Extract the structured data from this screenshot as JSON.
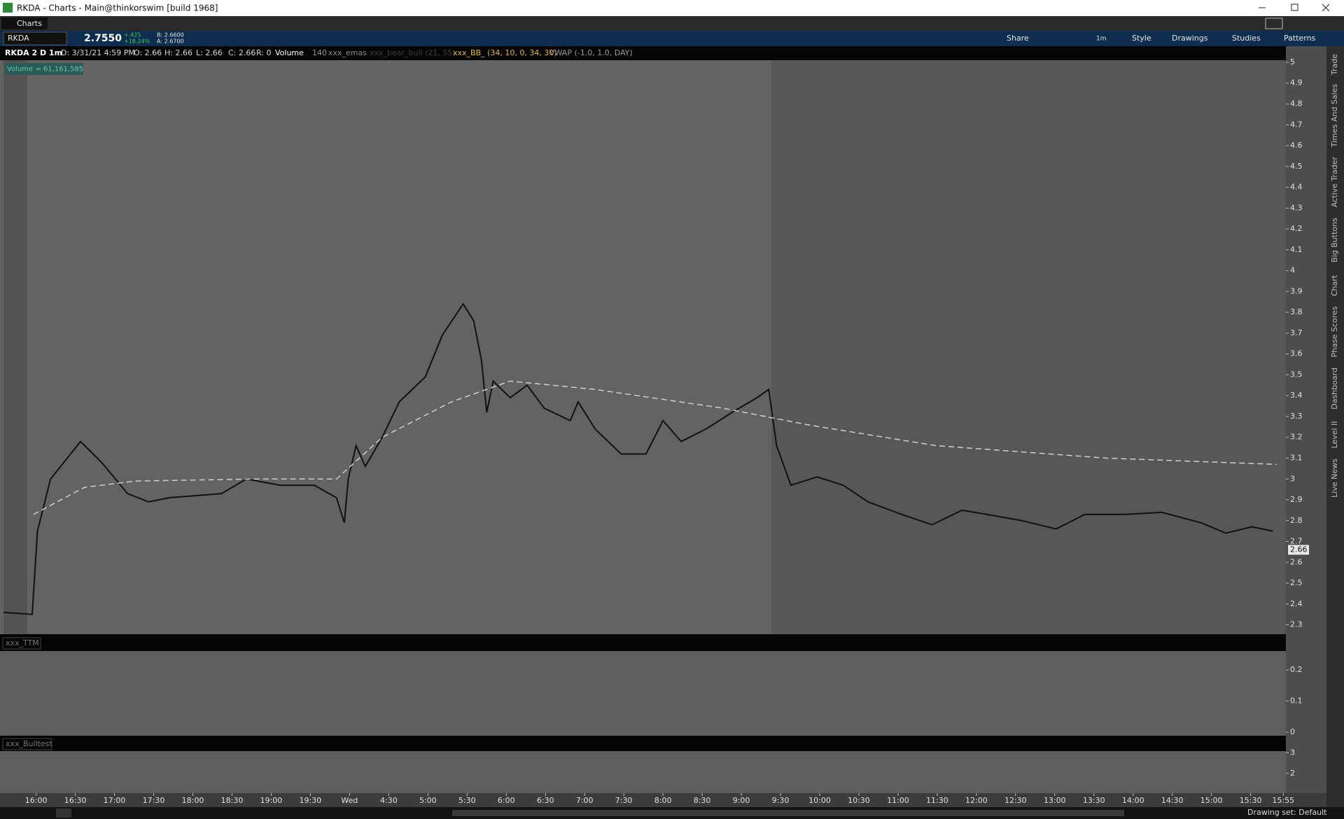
{
  "window": {
    "title": "RKDA - Charts -  Main@thinkorswim [build 1968]",
    "tab": "Charts"
  },
  "toolbar": {
    "symbol": "RKDA",
    "last": "2.7550",
    "change": "+.425",
    "change_pct": "+18.24%",
    "bid": "B: 2.6600",
    "ask": "A: 2.6700",
    "buttons": [
      "Share",
      "1m",
      "Style",
      "Drawings",
      "Studies",
      "Patterns"
    ]
  },
  "info_bar": [
    "D: 3/31/21 4:59 PM",
    "O: 2.66",
    "H: 2.66",
    "L: 2.66",
    "C: 2.66",
    "R: 0",
    "Volume",
    "140",
    "xxx_emas",
    "xxx_bear_bull (21, 55)",
    "xxx_BB_ (34, 10, 0, 34, 30)"
  ],
  "volume_label": "Volume = 61,161,585",
  "side_tabs": [
    "Trade",
    "Times And Sales",
    "Active Trader",
    "Big Buttons",
    "Chart",
    "Phase Scores",
    "Dashboard",
    "Level II",
    "Live News"
  ],
  "status": "Drawing set: Default",
  "chart_data": {
    "type": "line",
    "series": [
      {
        "name": "RKDA 2 D 1m",
        "color": "#111111",
        "dashed": false,
        "x": [
          -25,
          -3,
          1,
          11,
          34,
          50,
          70,
          86,
          102,
          122,
          142,
          161,
          187,
          213,
          230,
          236,
          239,
          245,
          252,
          265,
          278,
          298,
          311,
          327,
          335,
          341,
          345,
          350,
          363,
          376,
          389,
          409,
          415,
          428,
          448,
          467,
          480,
          494,
          513,
          533,
          552,
          561,
          567,
          578,
          598,
          618,
          637,
          663,
          686,
          709,
          728,
          755,
          781,
          803,
          833,
          862,
          892,
          911,
          931,
          947
        ],
        "values": [
          2.36,
          2.35,
          2.75,
          3.0,
          3.18,
          3.08,
          2.93,
          2.89,
          2.91,
          2.92,
          2.93,
          3.0,
          2.97,
          2.97,
          2.91,
          2.79,
          3.0,
          3.16,
          3.06,
          3.2,
          3.37,
          3.49,
          3.69,
          3.84,
          3.76,
          3.57,
          3.32,
          3.47,
          3.39,
          3.45,
          3.34,
          3.28,
          3.37,
          3.24,
          3.12,
          3.12,
          3.28,
          3.18,
          3.24,
          3.32,
          3.39,
          3.43,
          3.16,
          2.97,
          3.01,
          2.97,
          2.89,
          2.83,
          2.78,
          2.85,
          2.83,
          2.8,
          2.76,
          2.83,
          2.83,
          2.84,
          2.79,
          2.74,
          2.77,
          2.75
        ]
      },
      {
        "name": "VWAP (-1.0, 1.0, DAY)",
        "color": "#cfcfcf",
        "dashed": true,
        "x": [
          -2,
          37,
          76,
          168,
          230,
          265,
          318,
          363,
          428,
          526,
          591,
          689,
          820,
          950
        ],
        "values": [
          2.83,
          2.96,
          2.99,
          3.0,
          3.0,
          3.2,
          3.37,
          3.47,
          3.43,
          3.34,
          3.26,
          3.16,
          3.1,
          3.07
        ]
      }
    ],
    "xlim": [
      -25,
      957
    ],
    "xticks": [
      {
        "value": 0,
        "label": "16:00"
      },
      {
        "value": 30,
        "label": "16:30"
      },
      {
        "value": 60,
        "label": "17:00"
      },
      {
        "value": 90,
        "label": "17:30"
      },
      {
        "value": 120,
        "label": "18:00"
      },
      {
        "value": 150,
        "label": "18:30"
      },
      {
        "value": 180,
        "label": "19:00"
      },
      {
        "value": 210,
        "label": "19:30"
      },
      {
        "value": 240,
        "label": "Wed"
      },
      {
        "value": 270,
        "label": "4:30"
      },
      {
        "value": 300,
        "label": "5:00"
      },
      {
        "value": 330,
        "label": "5:30"
      },
      {
        "value": 360,
        "label": "6:00"
      },
      {
        "value": 390,
        "label": "6:30"
      },
      {
        "value": 420,
        "label": "7:00"
      },
      {
        "value": 450,
        "label": "7:30"
      },
      {
        "value": 480,
        "label": "8:00"
      },
      {
        "value": 510,
        "label": "8:30"
      },
      {
        "value": 540,
        "label": "9:00"
      },
      {
        "value": 570,
        "label": "9:30"
      },
      {
        "value": 600,
        "label": "10:00"
      },
      {
        "value": 630,
        "label": "10:30"
      },
      {
        "value": 660,
        "label": "11:00"
      },
      {
        "value": 690,
        "label": "11:30"
      },
      {
        "value": 720,
        "label": "12:00"
      },
      {
        "value": 750,
        "label": "12:30"
      },
      {
        "value": 780,
        "label": "13:00"
      },
      {
        "value": 810,
        "label": "13:30"
      },
      {
        "value": 840,
        "label": "14:00"
      },
      {
        "value": 870,
        "label": "14:30"
      },
      {
        "value": 900,
        "label": "15:00"
      },
      {
        "value": 930,
        "label": "15:30"
      },
      {
        "value": 955,
        "label": "15:55"
      }
    ],
    "ylim": [
      2.255,
      5.01
    ],
    "yticks": [
      2.3,
      2.4,
      2.5,
      2.6,
      2.7,
      2.8,
      2.9,
      3,
      3.1,
      3.2,
      3.3,
      3.4,
      3.5,
      3.6,
      3.7,
      3.8,
      3.9,
      4,
      4.1,
      4.2,
      4.3,
      4.4,
      4.5,
      4.6,
      4.7,
      4.8,
      4.9,
      5
    ],
    "last_price": 2.66
  },
  "panels": [
    {
      "title": "xxx_TTM",
      "ylim": [
        -0.011,
        0.261
      ],
      "yticks": [
        0,
        0.1,
        0.2
      ]
    },
    {
      "title": "xxx_Bulltest",
      "ylim": [
        1.04,
        3.08
      ],
      "yticks": [
        2,
        3
      ]
    }
  ]
}
